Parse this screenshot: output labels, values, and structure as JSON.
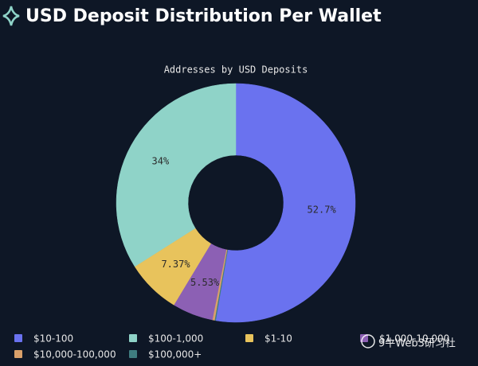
{
  "chart_data": {
    "type": "donut",
    "title": "USD Deposit Distribution Per Wallet",
    "subtitle": "Addresses by USD Deposits",
    "categories": [
      "$10-100",
      "$100-1,000",
      "$1-10",
      "$1,000-10,000",
      "$10,000-100,000",
      "$100,000+"
    ],
    "values": [
      52.7,
      34,
      7.37,
      5.53,
      0.3,
      0.1
    ],
    "value_labels": [
      "52.7%",
      "34%",
      "7.37%",
      "5.53%",
      null,
      null
    ],
    "colors": [
      "#6a72ef",
      "#8fd3c8",
      "#e8c35c",
      "#8c60b4",
      "#d9a06a",
      "#3f7d80"
    ],
    "legend": "bottom"
  },
  "watermark": "9牛Web3研习社"
}
